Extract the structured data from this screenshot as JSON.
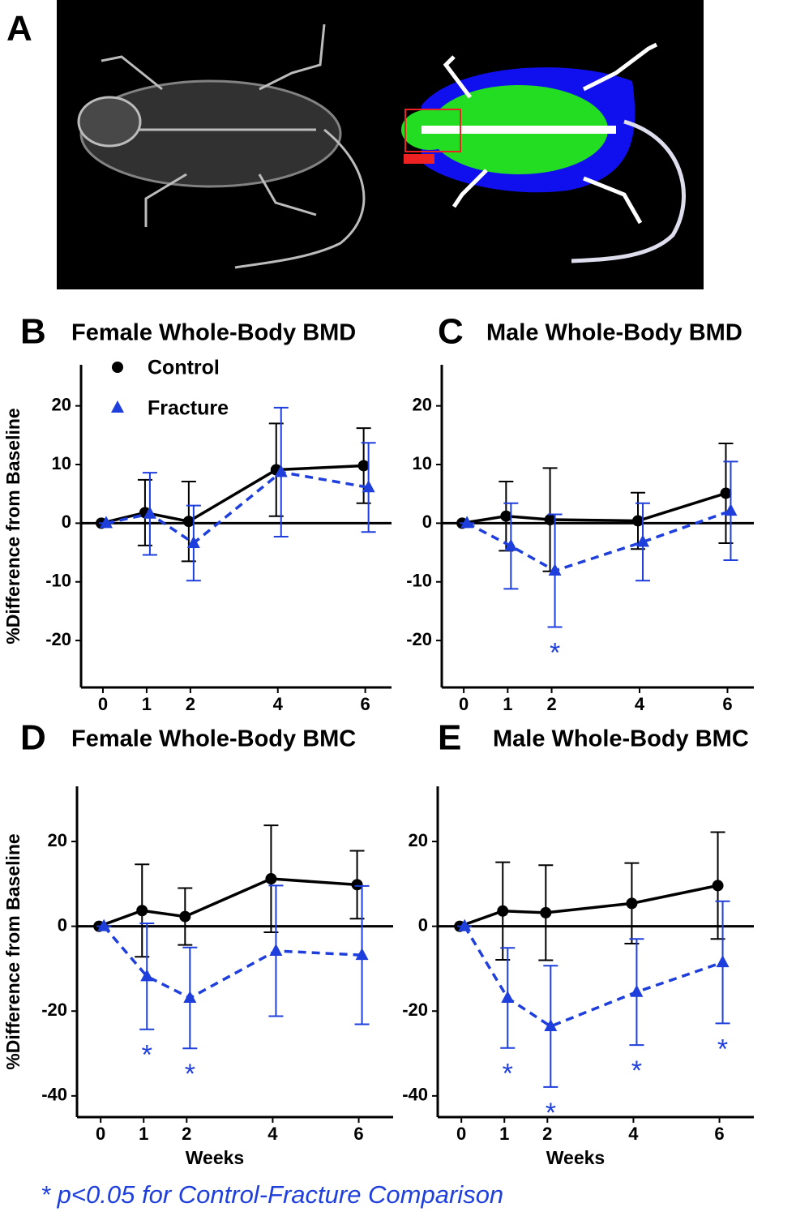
{
  "panel_a": {
    "label": "A"
  },
  "footnote": "* p<0.05 for Control-Fracture Comparison",
  "chart_data": [
    {
      "type": "line",
      "panel": "B",
      "title": "Female Whole-Body BMD",
      "ylabel": "%Difference from Baseline",
      "x": [
        0,
        1,
        2,
        4,
        6
      ],
      "xlim": [
        -0.5,
        6.6
      ],
      "xticks": [
        0,
        1,
        2,
        4,
        6
      ],
      "ylim": [
        -28,
        27
      ],
      "yticks": [
        -20,
        -10,
        0,
        10,
        20
      ],
      "reference_line": 0,
      "legend": "top-left",
      "series": [
        {
          "name": "Control",
          "color": "#000000",
          "marker": "circle",
          "line_style": "solid",
          "values": [
            0,
            1.8,
            0.3,
            9.1,
            9.8
          ],
          "errors": [
            0,
            5.6,
            6.8,
            7.9,
            6.4
          ]
        },
        {
          "name": "Fracture",
          "color": "#1f3fdc",
          "marker": "triangle",
          "line_style": "dashed",
          "values": [
            0,
            1.6,
            -3.4,
            8.7,
            6.1
          ],
          "errors": [
            0,
            7,
            6.4,
            11,
            7.6
          ]
        }
      ]
    },
    {
      "type": "line",
      "panel": "C",
      "title": "Male Whole-Body BMD",
      "x": [
        0,
        1,
        2,
        4,
        6
      ],
      "xlim": [
        -0.5,
        6.6
      ],
      "xticks": [
        0,
        1,
        2,
        4,
        6
      ],
      "ylim": [
        -28,
        27
      ],
      "yticks": [
        -20,
        -10,
        0,
        10,
        20
      ],
      "reference_line": 0,
      "significance_marker": "*",
      "series": [
        {
          "color": "#000000",
          "marker": "circle",
          "line_style": "solid",
          "values": [
            0,
            1.2,
            0.6,
            0.4,
            5.1
          ],
          "errors": [
            0,
            5.9,
            8.8,
            4.8,
            8.5
          ]
        },
        {
          "color": "#1f3fdc",
          "marker": "triangle",
          "line_style": "dashed",
          "values": [
            0,
            -3.9,
            -8.1,
            -3.2,
            2.1
          ],
          "errors": [
            0,
            7.3,
            9.6,
            6.6,
            8.4
          ],
          "significant": [
            false,
            false,
            true,
            false,
            false
          ]
        }
      ]
    },
    {
      "type": "line",
      "panel": "D",
      "title": "Female Whole-Body BMC",
      "ylabel": "%Difference from Baseline",
      "xlabel": "Weeks",
      "x": [
        0,
        1,
        2,
        4,
        6
      ],
      "xlim": [
        -0.55,
        6.8
      ],
      "xticks": [
        0,
        1,
        2,
        4,
        6
      ],
      "ylim": [
        -45,
        33
      ],
      "yticks": [
        -40,
        -20,
        0,
        20
      ],
      "reference_line": 0,
      "significance_marker": "*",
      "series": [
        {
          "color": "#000000",
          "marker": "circle",
          "line_style": "solid",
          "values": [
            0,
            3.7,
            2.3,
            11.2,
            9.8
          ],
          "errors": [
            0,
            10.9,
            6.7,
            12.6,
            8
          ]
        },
        {
          "color": "#1f3fdc",
          "marker": "triangle",
          "line_style": "dashed",
          "values": [
            0,
            -11.8,
            -16.9,
            -5.8,
            -6.8
          ],
          "errors": [
            0,
            12.5,
            11.9,
            15.4,
            16.3
          ],
          "significant": [
            false,
            true,
            true,
            false,
            false
          ]
        }
      ]
    },
    {
      "type": "line",
      "panel": "E",
      "title": "Male Whole-Body BMC",
      "xlabel": "Weeks",
      "x": [
        0,
        1,
        2,
        4,
        6
      ],
      "xlim": [
        -0.55,
        6.8
      ],
      "xticks": [
        0,
        1,
        2,
        4,
        6
      ],
      "ylim": [
        -45,
        33
      ],
      "yticks": [
        -40,
        -20,
        0,
        20
      ],
      "reference_line": 0,
      "significance_marker": "*",
      "series": [
        {
          "color": "#000000",
          "marker": "circle",
          "line_style": "solid",
          "values": [
            0,
            3.6,
            3.2,
            5.4,
            9.6
          ],
          "errors": [
            0,
            11.5,
            11.2,
            9.5,
            12.6
          ]
        },
        {
          "color": "#1f3fdc",
          "marker": "triangle",
          "line_style": "dashed",
          "values": [
            0,
            -16.9,
            -23.6,
            -15.5,
            -8.5
          ],
          "errors": [
            0,
            11.8,
            14.3,
            12.5,
            14.4
          ],
          "significant": [
            false,
            true,
            true,
            true,
            true
          ]
        }
      ]
    }
  ]
}
